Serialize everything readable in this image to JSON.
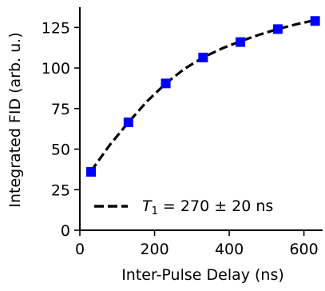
{
  "chart_data": {
    "type": "scatter",
    "title": "",
    "xlabel": "Inter-Pulse Delay (ns)",
    "ylabel": "Integrated FID (arb. u.)",
    "xlim": [
      0,
      650
    ],
    "ylim": [
      0,
      137
    ],
    "x_ticks": [
      0,
      200,
      400,
      600
    ],
    "y_ticks": [
      0,
      25,
      50,
      75,
      100,
      125
    ],
    "grid": false,
    "legend_position": "bottom-right",
    "series": [
      {
        "kind": "markers",
        "marker": "square",
        "color": "#0000ff",
        "x": [
          30,
          130,
          230,
          330,
          430,
          530,
          630
        ],
        "y": [
          36,
          66.5,
          90.5,
          106.5,
          116,
          124,
          129
        ]
      },
      {
        "kind": "fit-line",
        "style": "dashed",
        "color": "#000000",
        "x": [
          30,
          80,
          130,
          180,
          230,
          280,
          330,
          380,
          430,
          480,
          530,
          580,
          630
        ],
        "y": [
          36.5,
          52.5,
          66.5,
          79.5,
          90.5,
          99.5,
          106.5,
          112,
          116.5,
          120.5,
          124,
          127,
          129.5
        ]
      }
    ],
    "legend": {
      "symbol": "T",
      "subscript": "1",
      "text": " = 270 ± 20 ns"
    }
  }
}
